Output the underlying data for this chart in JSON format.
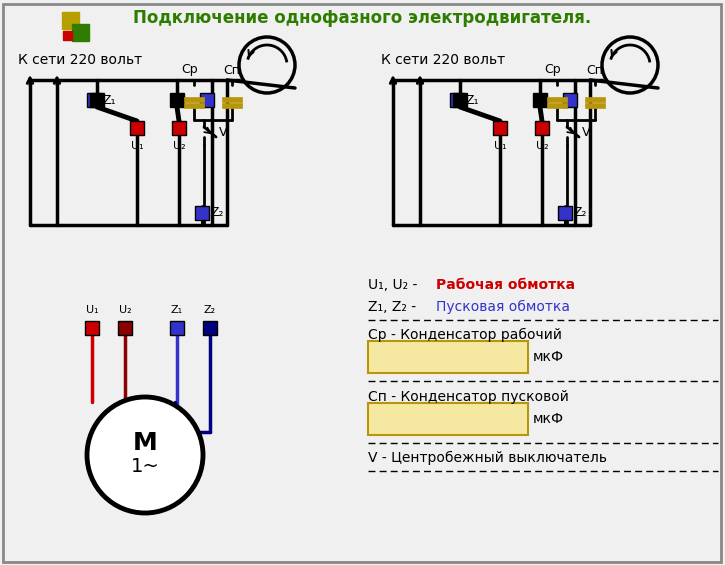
{
  "title": "Подключение однофазного электродвигателя.",
  "title_color": "#2e7d00",
  "title_fontsize": 12,
  "bg_color": "#f0f0f0",
  "border_color": "#888888",
  "text_k_seti": "К сети 220 вольт",
  "text_u1u2_red": "Рабочая обмотка",
  "text_z1z2_blue": "Пусковая обмотка",
  "text_cp_label": "Ср - Конденсатор рабочий",
  "text_mkf1": "мкФ",
  "text_cn_label": "Сп - Конденсатор пусковой",
  "text_mkf2": "мкФ",
  "text_v_label": "V - Центробежный выключатель",
  "color_red": "#cc0000",
  "color_blue": "#3333cc",
  "color_dark_blue": "#000080",
  "color_dark_red": "#8b0000",
  "color_black": "#111111",
  "color_capacitor": "#b8960c",
  "color_box_bg": "#f5e8a0",
  "color_box_border": "#b8960c",
  "logo_yellow": "#b5a000",
  "logo_green": "#2e7d00",
  "logo_red": "#cc0000"
}
